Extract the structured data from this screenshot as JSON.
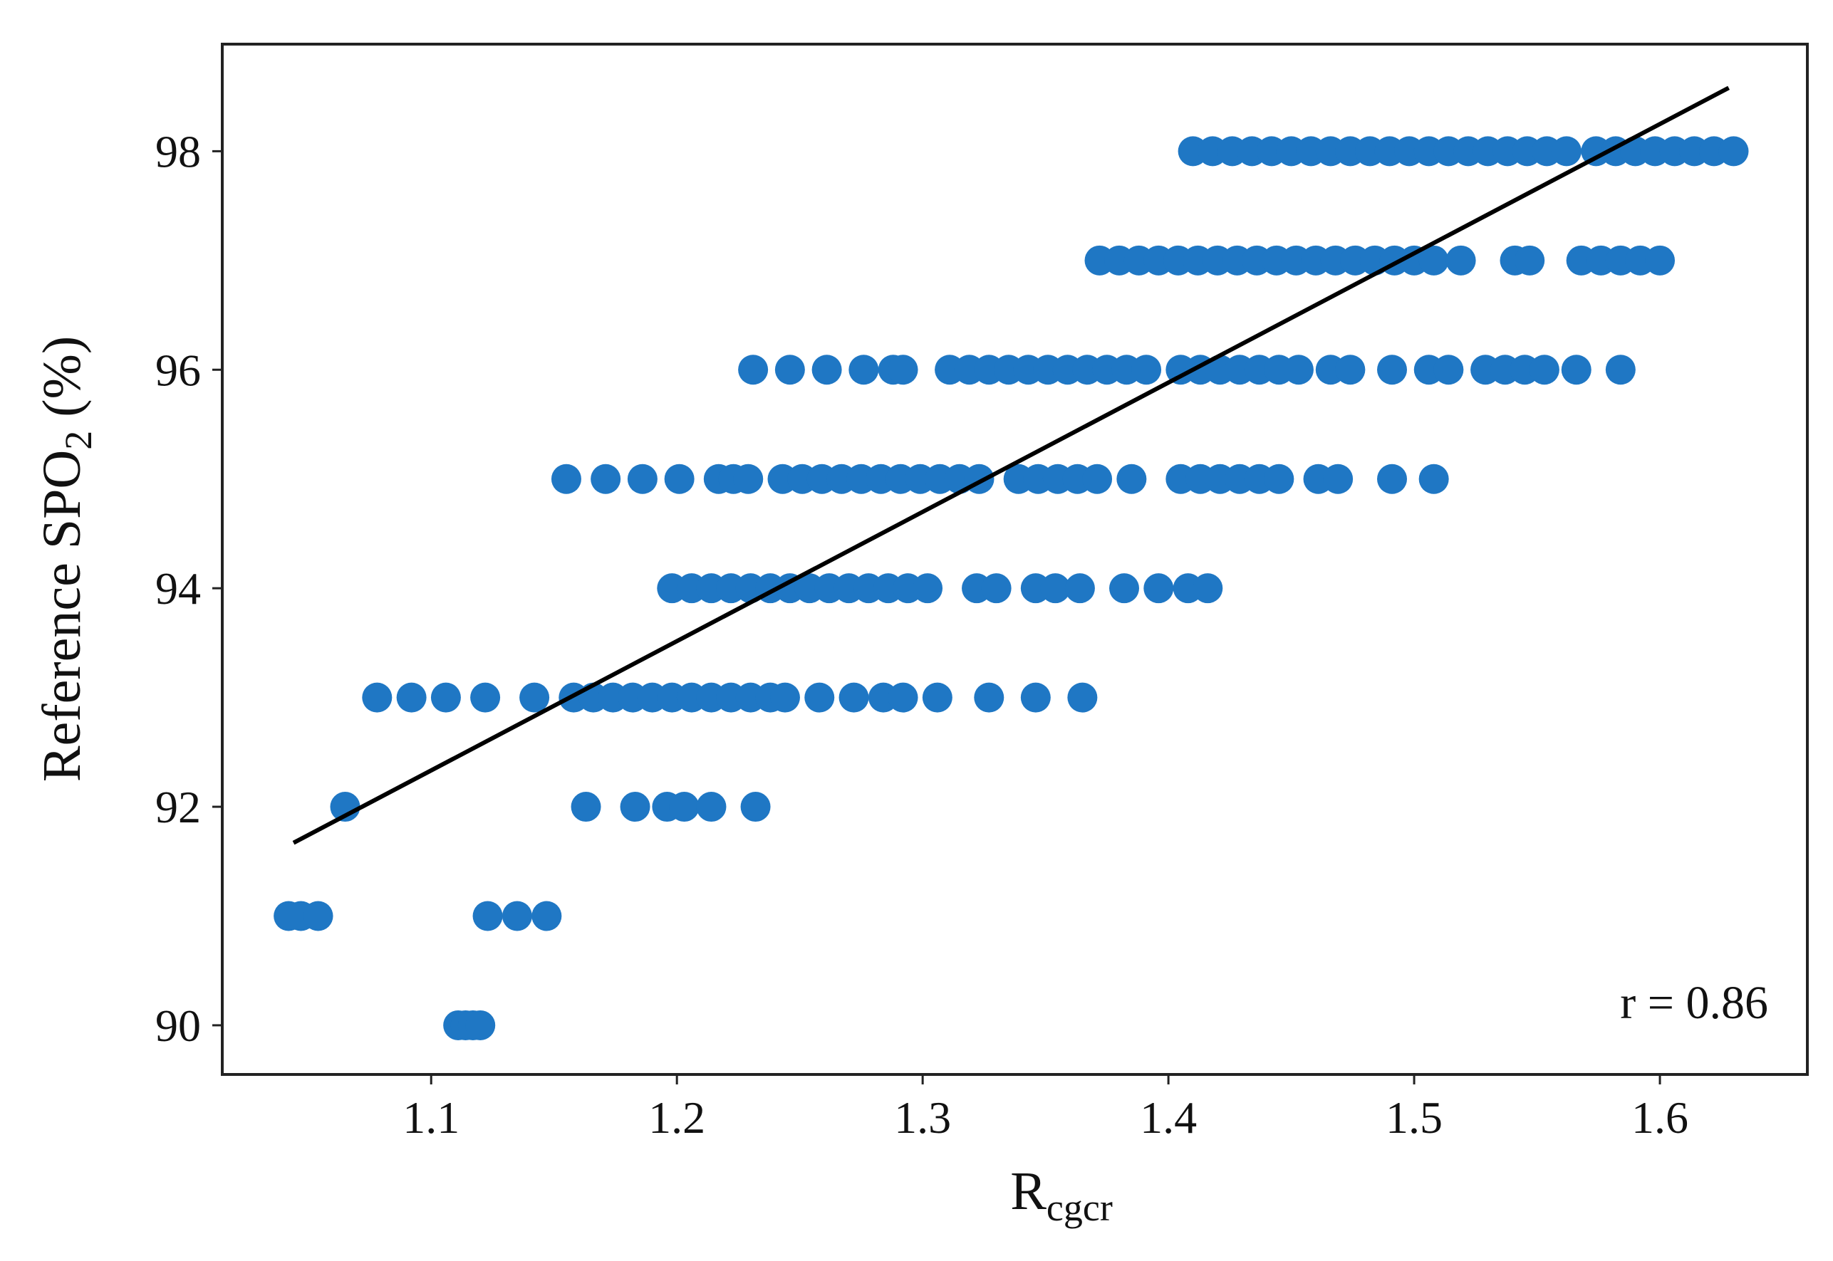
{
  "chart_data": {
    "type": "scatter",
    "xlabel": {
      "main": "R",
      "sub": "cgcr"
    },
    "ylabel": {
      "main": "Reference SPO",
      "sub": "2",
      "suffix": " (%)"
    },
    "xlim": [
      1.015,
      1.66
    ],
    "ylim": [
      89.55,
      98.98
    ],
    "xticks": [
      1.1,
      1.2,
      1.3,
      1.4,
      1.5,
      1.6
    ],
    "yticks": [
      90,
      92,
      94,
      96,
      98
    ],
    "xtick_labels": [
      "1.1",
      "1.2",
      "1.3",
      "1.4",
      "1.5",
      "1.6"
    ],
    "ytick_labels": [
      "90",
      "92",
      "94",
      "96",
      "98"
    ],
    "grid": false,
    "point_color": "#1f77c4",
    "line_color": "#000000",
    "series": [
      {
        "points": [
          {
            "x": 1.042,
            "y": 91
          },
          {
            "x": 1.047,
            "y": 91
          },
          {
            "x": 1.054,
            "y": 91
          },
          {
            "x": 1.111,
            "y": 90
          },
          {
            "x": 1.114,
            "y": 90
          },
          {
            "x": 1.117,
            "y": 90
          },
          {
            "x": 1.12,
            "y": 90
          },
          {
            "x": 1.123,
            "y": 91
          },
          {
            "x": 1.135,
            "y": 91
          },
          {
            "x": 1.147,
            "y": 91
          },
          {
            "x": 1.065,
            "y": 92
          },
          {
            "x": 1.163,
            "y": 92
          },
          {
            "x": 1.183,
            "y": 92
          },
          {
            "x": 1.196,
            "y": 92
          },
          {
            "x": 1.203,
            "y": 92
          },
          {
            "x": 1.214,
            "y": 92
          },
          {
            "x": 1.232,
            "y": 92
          },
          {
            "x": 1.078,
            "y": 93
          },
          {
            "x": 1.092,
            "y": 93
          },
          {
            "x": 1.106,
            "y": 93
          },
          {
            "x": 1.122,
            "y": 93
          },
          {
            "x": 1.142,
            "y": 93
          },
          {
            "x": 1.158,
            "y": 93
          },
          {
            "x": 1.166,
            "y": 93
          },
          {
            "x": 1.174,
            "y": 93
          },
          {
            "x": 1.182,
            "y": 93
          },
          {
            "x": 1.19,
            "y": 93
          },
          {
            "x": 1.198,
            "y": 93
          },
          {
            "x": 1.206,
            "y": 93
          },
          {
            "x": 1.214,
            "y": 93
          },
          {
            "x": 1.222,
            "y": 93
          },
          {
            "x": 1.23,
            "y": 93
          },
          {
            "x": 1.238,
            "y": 93
          },
          {
            "x": 1.244,
            "y": 93
          },
          {
            "x": 1.258,
            "y": 93
          },
          {
            "x": 1.272,
            "y": 93
          },
          {
            "x": 1.284,
            "y": 93
          },
          {
            "x": 1.292,
            "y": 93
          },
          {
            "x": 1.306,
            "y": 93
          },
          {
            "x": 1.327,
            "y": 93
          },
          {
            "x": 1.346,
            "y": 93
          },
          {
            "x": 1.365,
            "y": 93
          },
          {
            "x": 1.198,
            "y": 94
          },
          {
            "x": 1.206,
            "y": 94
          },
          {
            "x": 1.214,
            "y": 94
          },
          {
            "x": 1.222,
            "y": 94
          },
          {
            "x": 1.23,
            "y": 94
          },
          {
            "x": 1.238,
            "y": 94
          },
          {
            "x": 1.246,
            "y": 94
          },
          {
            "x": 1.254,
            "y": 94
          },
          {
            "x": 1.262,
            "y": 94
          },
          {
            "x": 1.27,
            "y": 94
          },
          {
            "x": 1.278,
            "y": 94
          },
          {
            "x": 1.286,
            "y": 94
          },
          {
            "x": 1.294,
            "y": 94
          },
          {
            "x": 1.302,
            "y": 94
          },
          {
            "x": 1.322,
            "y": 94
          },
          {
            "x": 1.33,
            "y": 94
          },
          {
            "x": 1.346,
            "y": 94
          },
          {
            "x": 1.354,
            "y": 94
          },
          {
            "x": 1.364,
            "y": 94
          },
          {
            "x": 1.382,
            "y": 94
          },
          {
            "x": 1.396,
            "y": 94
          },
          {
            "x": 1.408,
            "y": 94
          },
          {
            "x": 1.416,
            "y": 94
          },
          {
            "x": 1.155,
            "y": 95
          },
          {
            "x": 1.171,
            "y": 95
          },
          {
            "x": 1.186,
            "y": 95
          },
          {
            "x": 1.201,
            "y": 95
          },
          {
            "x": 1.217,
            "y": 95
          },
          {
            "x": 1.223,
            "y": 95
          },
          {
            "x": 1.229,
            "y": 95
          },
          {
            "x": 1.243,
            "y": 95
          },
          {
            "x": 1.251,
            "y": 95
          },
          {
            "x": 1.259,
            "y": 95
          },
          {
            "x": 1.267,
            "y": 95
          },
          {
            "x": 1.275,
            "y": 95
          },
          {
            "x": 1.283,
            "y": 95
          },
          {
            "x": 1.291,
            "y": 95
          },
          {
            "x": 1.299,
            "y": 95
          },
          {
            "x": 1.307,
            "y": 95
          },
          {
            "x": 1.315,
            "y": 95
          },
          {
            "x": 1.323,
            "y": 95
          },
          {
            "x": 1.339,
            "y": 95
          },
          {
            "x": 1.347,
            "y": 95
          },
          {
            "x": 1.355,
            "y": 95
          },
          {
            "x": 1.363,
            "y": 95
          },
          {
            "x": 1.371,
            "y": 95
          },
          {
            "x": 1.385,
            "y": 95
          },
          {
            "x": 1.405,
            "y": 95
          },
          {
            "x": 1.413,
            "y": 95
          },
          {
            "x": 1.421,
            "y": 95
          },
          {
            "x": 1.429,
            "y": 95
          },
          {
            "x": 1.437,
            "y": 95
          },
          {
            "x": 1.445,
            "y": 95
          },
          {
            "x": 1.461,
            "y": 95
          },
          {
            "x": 1.469,
            "y": 95
          },
          {
            "x": 1.491,
            "y": 95
          },
          {
            "x": 1.508,
            "y": 95
          },
          {
            "x": 1.231,
            "y": 96
          },
          {
            "x": 1.246,
            "y": 96
          },
          {
            "x": 1.261,
            "y": 96
          },
          {
            "x": 1.276,
            "y": 96
          },
          {
            "x": 1.288,
            "y": 96
          },
          {
            "x": 1.292,
            "y": 96
          },
          {
            "x": 1.311,
            "y": 96
          },
          {
            "x": 1.319,
            "y": 96
          },
          {
            "x": 1.327,
            "y": 96
          },
          {
            "x": 1.335,
            "y": 96
          },
          {
            "x": 1.343,
            "y": 96
          },
          {
            "x": 1.351,
            "y": 96
          },
          {
            "x": 1.359,
            "y": 96
          },
          {
            "x": 1.367,
            "y": 96
          },
          {
            "x": 1.375,
            "y": 96
          },
          {
            "x": 1.383,
            "y": 96
          },
          {
            "x": 1.391,
            "y": 96
          },
          {
            "x": 1.405,
            "y": 96
          },
          {
            "x": 1.413,
            "y": 96
          },
          {
            "x": 1.421,
            "y": 96
          },
          {
            "x": 1.429,
            "y": 96
          },
          {
            "x": 1.437,
            "y": 96
          },
          {
            "x": 1.445,
            "y": 96
          },
          {
            "x": 1.453,
            "y": 96
          },
          {
            "x": 1.466,
            "y": 96
          },
          {
            "x": 1.474,
            "y": 96
          },
          {
            "x": 1.491,
            "y": 96
          },
          {
            "x": 1.506,
            "y": 96
          },
          {
            "x": 1.514,
            "y": 96
          },
          {
            "x": 1.529,
            "y": 96
          },
          {
            "x": 1.537,
            "y": 96
          },
          {
            "x": 1.545,
            "y": 96
          },
          {
            "x": 1.553,
            "y": 96
          },
          {
            "x": 1.566,
            "y": 96
          },
          {
            "x": 1.584,
            "y": 96
          },
          {
            "x": 1.372,
            "y": 97
          },
          {
            "x": 1.38,
            "y": 97
          },
          {
            "x": 1.388,
            "y": 97
          },
          {
            "x": 1.396,
            "y": 97
          },
          {
            "x": 1.404,
            "y": 97
          },
          {
            "x": 1.412,
            "y": 97
          },
          {
            "x": 1.42,
            "y": 97
          },
          {
            "x": 1.428,
            "y": 97
          },
          {
            "x": 1.436,
            "y": 97
          },
          {
            "x": 1.444,
            "y": 97
          },
          {
            "x": 1.452,
            "y": 97
          },
          {
            "x": 1.46,
            "y": 97
          },
          {
            "x": 1.468,
            "y": 97
          },
          {
            "x": 1.476,
            "y": 97
          },
          {
            "x": 1.484,
            "y": 97
          },
          {
            "x": 1.492,
            "y": 97
          },
          {
            "x": 1.5,
            "y": 97
          },
          {
            "x": 1.508,
            "y": 97
          },
          {
            "x": 1.519,
            "y": 97
          },
          {
            "x": 1.541,
            "y": 97
          },
          {
            "x": 1.547,
            "y": 97
          },
          {
            "x": 1.568,
            "y": 97
          },
          {
            "x": 1.576,
            "y": 97
          },
          {
            "x": 1.584,
            "y": 97
          },
          {
            "x": 1.592,
            "y": 97
          },
          {
            "x": 1.6,
            "y": 97
          },
          {
            "x": 1.41,
            "y": 98
          },
          {
            "x": 1.418,
            "y": 98
          },
          {
            "x": 1.426,
            "y": 98
          },
          {
            "x": 1.434,
            "y": 98
          },
          {
            "x": 1.442,
            "y": 98
          },
          {
            "x": 1.45,
            "y": 98
          },
          {
            "x": 1.458,
            "y": 98
          },
          {
            "x": 1.466,
            "y": 98
          },
          {
            "x": 1.474,
            "y": 98
          },
          {
            "x": 1.482,
            "y": 98
          },
          {
            "x": 1.49,
            "y": 98
          },
          {
            "x": 1.498,
            "y": 98
          },
          {
            "x": 1.506,
            "y": 98
          },
          {
            "x": 1.514,
            "y": 98
          },
          {
            "x": 1.522,
            "y": 98
          },
          {
            "x": 1.53,
            "y": 98
          },
          {
            "x": 1.538,
            "y": 98
          },
          {
            "x": 1.546,
            "y": 98
          },
          {
            "x": 1.554,
            "y": 98
          },
          {
            "x": 1.562,
            "y": 98
          },
          {
            "x": 1.574,
            "y": 98
          },
          {
            "x": 1.582,
            "y": 98
          },
          {
            "x": 1.59,
            "y": 98
          },
          {
            "x": 1.598,
            "y": 98
          },
          {
            "x": 1.606,
            "y": 98
          },
          {
            "x": 1.614,
            "y": 98
          },
          {
            "x": 1.622,
            "y": 98
          },
          {
            "x": 1.63,
            "y": 98
          }
        ]
      }
    ],
    "fit_line": {
      "x": [
        1.044,
        1.628
      ],
      "y": [
        91.67,
        98.58
      ]
    },
    "annotation": "r = 0.86"
  }
}
